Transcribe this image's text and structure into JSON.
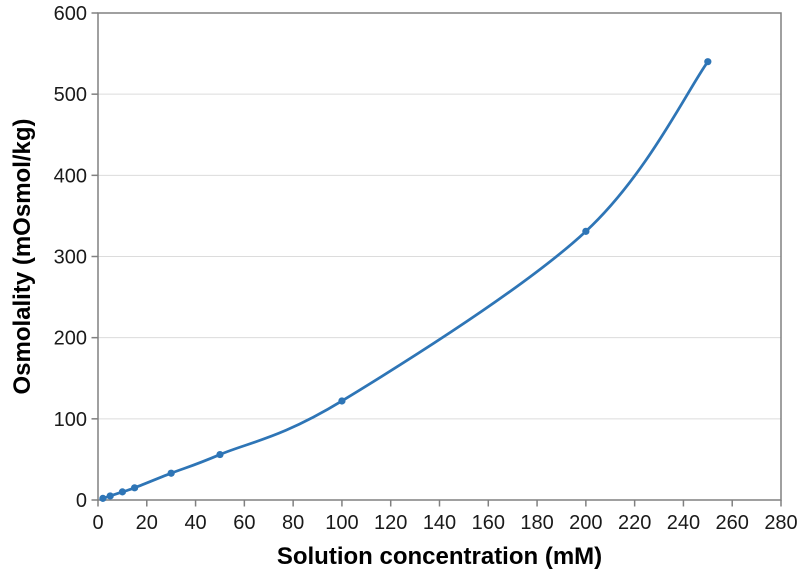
{
  "chart_data": {
    "type": "line",
    "title": "",
    "xlabel": "Solution concentration (mM)",
    "ylabel": "Osmolality (mOsmol/kg)",
    "series": [
      {
        "x": [
          2,
          5,
          10,
          15,
          30,
          50,
          100,
          200,
          250
        ],
        "y": [
          2,
          5,
          10,
          15,
          33,
          56,
          122,
          331,
          540
        ]
      }
    ],
    "xlim": [
      0,
      280
    ],
    "ylim": [
      0,
      600
    ],
    "x_ticks": [
      0,
      20,
      40,
      60,
      80,
      100,
      120,
      140,
      160,
      180,
      200,
      220,
      240,
      260,
      280
    ],
    "y_ticks": [
      0,
      100,
      200,
      300,
      400,
      500,
      600
    ],
    "grid": "horizontal-only",
    "legend_position": "none",
    "line_style": "smooth",
    "marker": "circle",
    "colors": {
      "series": "#2E75B6",
      "axis": "#808080",
      "gridline": "#DCDCDC",
      "text": "#000000",
      "background": "#FFFFFF"
    }
  }
}
